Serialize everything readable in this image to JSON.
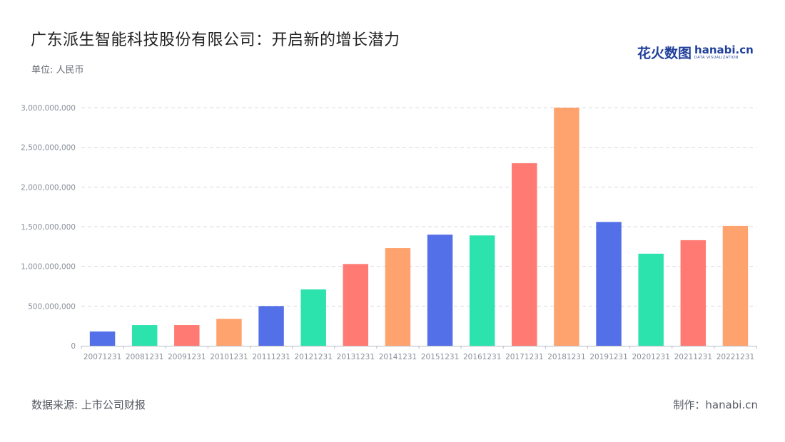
{
  "header": {
    "title": "广东派生智能科技股份有限公司：开启新的增长潜力",
    "unit": "单位: 人民币"
  },
  "logo": {
    "cn": "花火数图",
    "en": "hanabi.cn",
    "en_sub": "DATA VISUALIZATION"
  },
  "footer": {
    "source": "数据来源: 上市公司财报",
    "credit": "制作：hanabi.cn"
  },
  "colors": {
    "blue": "#5470e8",
    "green": "#2de3ad",
    "red": "#ff7a72",
    "orange": "#ffa36e",
    "grid": "#d9dbe0",
    "axis": "#b8bcc4"
  },
  "chart_data": {
    "type": "bar",
    "categories": [
      "20071231",
      "20081231",
      "20091231",
      "20101231",
      "20111231",
      "20121231",
      "20131231",
      "20141231",
      "20151231",
      "20161231",
      "20171231",
      "20181231",
      "20191231",
      "20201231",
      "20211231",
      "20221231"
    ],
    "values": [
      180000000,
      260000000,
      260000000,
      340000000,
      500000000,
      710000000,
      1030000000,
      1230000000,
      1400000000,
      1390000000,
      2300000000,
      3000000000,
      1560000000,
      1160000000,
      1330000000,
      1510000000
    ],
    "bar_colors": [
      "#5470e8",
      "#2de3ad",
      "#ff7a72",
      "#ffa36e",
      "#5470e8",
      "#2de3ad",
      "#ff7a72",
      "#ffa36e",
      "#5470e8",
      "#2de3ad",
      "#ff7a72",
      "#ffa36e",
      "#5470e8",
      "#2de3ad",
      "#ff7a72",
      "#ffa36e"
    ],
    "yticks": [
      0,
      500000000,
      1000000000,
      1500000000,
      2000000000,
      2500000000,
      3000000000
    ],
    "ytick_labels": [
      "0",
      "500,000,000",
      "1,000,000,000",
      "1,500,000,000",
      "2,000,000,000",
      "2,500,000,000",
      "3,000,000,000"
    ],
    "ylim": [
      0,
      3000000000
    ],
    "grid": true,
    "grid_style": "dashed"
  }
}
